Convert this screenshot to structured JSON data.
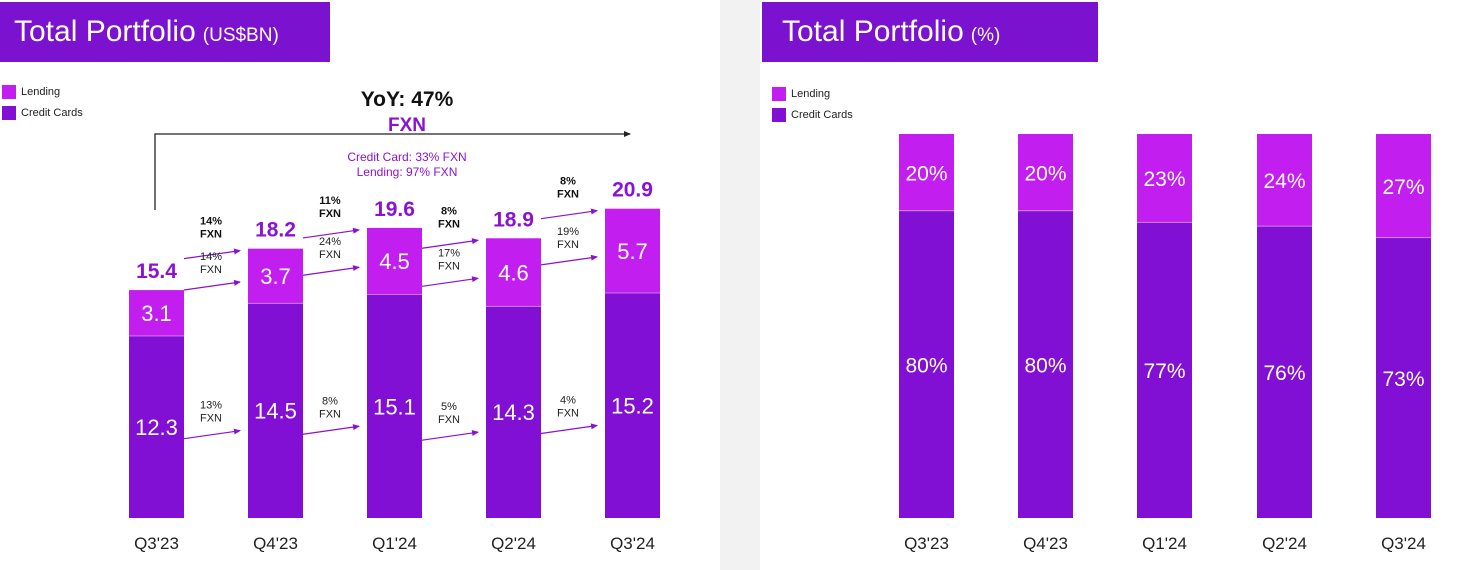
{
  "colors": {
    "lending": "#c21ef0",
    "credit_cards": "#8110d4",
    "title_bar": "#7a12cf",
    "accent_text": "#8a12d6",
    "arrow": "#8a12d6"
  },
  "panels": [
    {
      "title": "Total Portfolio",
      "unit": "(US$BN)"
    },
    {
      "title": "Total Portfolio",
      "unit": "(%)"
    }
  ],
  "legend": [
    {
      "label": "Lending",
      "color": "#c21ef0"
    },
    {
      "label": "Credit Cards",
      "color": "#8110d4"
    }
  ],
  "yoy": {
    "line1": "YoY: 47%",
    "line2": "FXN",
    "detail1": "Credit Card: 33% FXN",
    "detail2": "Lending: 97% FXN"
  },
  "chart_data": [
    {
      "type": "bar",
      "stacked": true,
      "title": "Total Portfolio (US$BN)",
      "categories": [
        "Q3'23",
        "Q4'23",
        "Q1'24",
        "Q2'24",
        "Q3'24"
      ],
      "series": [
        {
          "name": "Credit Cards",
          "values": [
            12.3,
            14.5,
            15.1,
            14.3,
            15.2
          ],
          "labels": [
            "12.3",
            "14.5",
            "15.1",
            "14.3",
            "15.2"
          ]
        },
        {
          "name": "Lending",
          "values": [
            3.1,
            3.7,
            4.5,
            4.6,
            5.7
          ],
          "labels": [
            "3.1",
            "3.7",
            "4.5",
            "4.6",
            "5.7"
          ]
        }
      ],
      "totals": [
        "15.4",
        "18.2",
        "19.6",
        "18.9",
        "20.9"
      ],
      "growth": [
        {
          "total": [
            "14%",
            "FXN"
          ],
          "lending": [
            "14%",
            "FXN"
          ],
          "credit_cards": [
            "13%",
            "FXN"
          ]
        },
        {
          "total": [
            "11%",
            "FXN"
          ],
          "lending": [
            "24%",
            "FXN"
          ],
          "credit_cards": [
            "8%",
            "FXN"
          ]
        },
        {
          "total": [
            "8%",
            "FXN"
          ],
          "lending": [
            "17%",
            "FXN"
          ],
          "credit_cards": [
            "5%",
            "FXN"
          ]
        },
        {
          "total": [
            "8%",
            "FXN"
          ],
          "lending": [
            "19%",
            "FXN"
          ],
          "credit_cards": [
            "4%",
            "FXN"
          ]
        }
      ],
      "legend_position": "top-left",
      "grid": false
    },
    {
      "type": "bar",
      "stacked": true,
      "title": "Total Portfolio (%)",
      "categories": [
        "Q3'23",
        "Q4'23",
        "Q1'24",
        "Q2'24",
        "Q3'24"
      ],
      "series": [
        {
          "name": "Credit Cards",
          "values": [
            80,
            80,
            77,
            76,
            73
          ],
          "labels": [
            "80%",
            "80%",
            "77%",
            "76%",
            "73%"
          ]
        },
        {
          "name": "Lending",
          "values": [
            20,
            20,
            23,
            24,
            27
          ],
          "labels": [
            "20%",
            "20%",
            "23%",
            "24%",
            "27%"
          ]
        }
      ],
      "legend_position": "top-left",
      "grid": false
    }
  ]
}
